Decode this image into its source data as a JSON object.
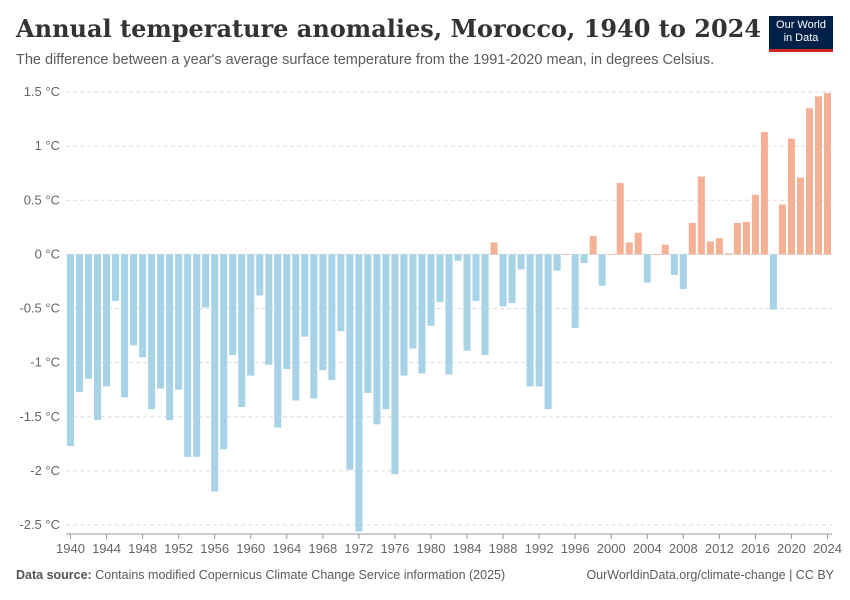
{
  "header": {
    "title": "Annual temperature anomalies, Morocco, 1940 to 2024",
    "subtitle": "The difference between a year's average surface temperature from the 1991-2020 mean, in degrees Celsius."
  },
  "logo": {
    "line1": "Our World",
    "line2": "in Data",
    "bg_color": "#002147",
    "accent_color": "#ce261e"
  },
  "footer": {
    "source_label": "Data source:",
    "source_text": "Contains modified Copernicus Climate Change Service information (2025)",
    "right_text": "OurWorldinData.org/climate-change | CC BY"
  },
  "chart_data": {
    "type": "bar",
    "title": "Annual temperature anomalies, Morocco, 1940 to 2024",
    "subtitle": "The difference between a year's average surface temperature from the 1991-2020 mean, in degrees Celsius.",
    "ylim": [
      -2.5,
      1.5
    ],
    "y_ticks": [
      -2.5,
      -2,
      -1.5,
      -1,
      -0.5,
      0,
      0.5,
      1,
      1.5
    ],
    "y_tick_labels": [
      "-2.5 °C",
      "-2 °C",
      "-1.5 °C",
      "-1 °C",
      "-0.5 °C",
      "0 °C",
      "0.5 °C",
      "1 °C",
      "1.5 °C"
    ],
    "x_tick_labels": [
      "1940",
      "1944",
      "1948",
      "1952",
      "1956",
      "1960",
      "1964",
      "1968",
      "1972",
      "1976",
      "1980",
      "1984",
      "1988",
      "1992",
      "1996",
      "2000",
      "2004",
      "2008",
      "2012",
      "2016",
      "2020",
      "2024"
    ],
    "grid": true,
    "positive_color": "#f4b195",
    "negative_color": "#a8d3e6",
    "years": [
      1940,
      1941,
      1942,
      1943,
      1944,
      1945,
      1946,
      1947,
      1948,
      1949,
      1950,
      1951,
      1952,
      1953,
      1954,
      1955,
      1956,
      1957,
      1958,
      1959,
      1960,
      1961,
      1962,
      1963,
      1964,
      1965,
      1966,
      1967,
      1968,
      1969,
      1970,
      1971,
      1972,
      1973,
      1974,
      1975,
      1976,
      1977,
      1978,
      1979,
      1980,
      1981,
      1982,
      1983,
      1984,
      1985,
      1986,
      1987,
      1988,
      1989,
      1990,
      1991,
      1992,
      1993,
      1994,
      1995,
      1996,
      1997,
      1998,
      1999,
      2000,
      2001,
      2002,
      2003,
      2004,
      2005,
      2006,
      2007,
      2008,
      2009,
      2010,
      2011,
      2012,
      2013,
      2014,
      2015,
      2016,
      2017,
      2018,
      2019,
      2020,
      2021,
      2022,
      2023,
      2024
    ],
    "values": [
      -1.77,
      -1.27,
      -1.15,
      -1.53,
      -1.22,
      -0.43,
      -1.32,
      -0.84,
      -0.95,
      -1.43,
      -1.24,
      -1.53,
      -1.25,
      -1.87,
      -1.87,
      -0.49,
      -2.19,
      -1.8,
      -0.93,
      -1.41,
      -1.12,
      -0.38,
      -1.02,
      -1.6,
      -1.06,
      -1.35,
      -0.76,
      -1.33,
      -1.07,
      -1.16,
      -0.71,
      -1.99,
      -2.56,
      -1.28,
      -1.57,
      -1.43,
      -2.03,
      -1.12,
      -0.87,
      -1.1,
      -0.66,
      -0.44,
      -1.11,
      -0.06,
      -0.89,
      -0.43,
      -0.93,
      0.11,
      -0.48,
      -0.45,
      -0.14,
      -1.22,
      -1.22,
      -1.43,
      -0.15,
      0.0,
      -0.68,
      -0.08,
      0.17,
      -0.29,
      0.0,
      0.66,
      0.11,
      0.2,
      -0.26,
      0.0,
      0.09,
      -0.19,
      -0.32,
      0.29,
      0.72,
      0.12,
      0.15,
      0.01,
      0.29,
      0.3,
      0.55,
      1.13,
      -0.51,
      0.46,
      1.07,
      0.71,
      1.35,
      1.46,
      1.49
    ]
  }
}
